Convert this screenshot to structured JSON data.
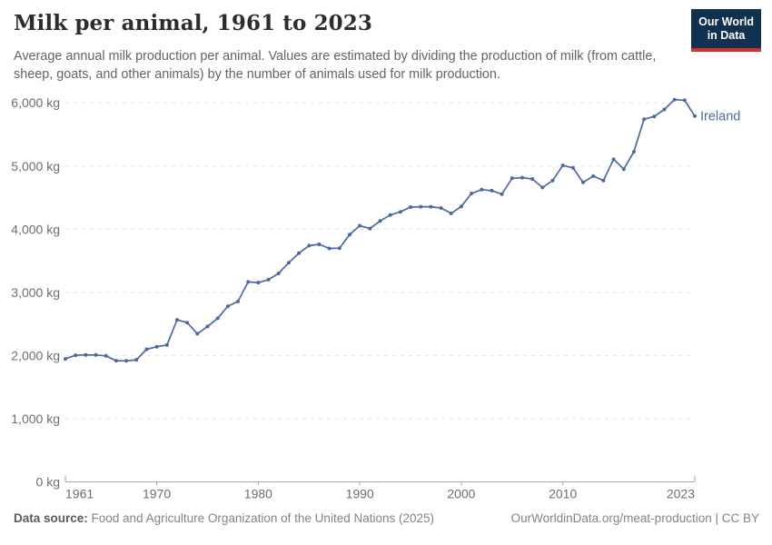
{
  "header": {
    "title": "Milk per animal, 1961 to 2023",
    "subtitle": "Average annual milk production per animal. Values are estimated by dividing the production of milk (from cattle, sheep, goats, and other animals) by the number of animals used for milk production.",
    "logo": {
      "line1": "Our World",
      "line2": "in Data"
    }
  },
  "footer": {
    "source_label": "Data source:",
    "source_text": " Food and Agriculture Organization of the United Nations (2025)",
    "credit_text": "OurWorldinData.org/meat-production | CC BY"
  },
  "chart_data": {
    "type": "line",
    "title": "Milk per animal, 1961 to 2023",
    "entity_label": "Ireland",
    "unit": "kg",
    "x": [
      1961,
      1962,
      1963,
      1964,
      1965,
      1966,
      1967,
      1968,
      1969,
      1970,
      1971,
      1972,
      1973,
      1974,
      1975,
      1976,
      1977,
      1978,
      1979,
      1980,
      1981,
      1982,
      1983,
      1984,
      1985,
      1986,
      1987,
      1988,
      1989,
      1990,
      1991,
      1992,
      1993,
      1994,
      1995,
      1996,
      1997,
      1998,
      1999,
      2000,
      2001,
      2002,
      2003,
      2004,
      2005,
      2006,
      2007,
      2008,
      2009,
      2010,
      2011,
      2012,
      2013,
      2014,
      2015,
      2016,
      2017,
      2018,
      2019,
      2020,
      2021,
      2022,
      2023
    ],
    "series": [
      {
        "name": "Ireland",
        "values": [
          1947,
          2005,
          2010,
          2008,
          1994,
          1918,
          1915,
          1932,
          2099,
          2140,
          2165,
          2565,
          2520,
          2345,
          2460,
          2590,
          2780,
          2855,
          3165,
          3155,
          3200,
          3300,
          3470,
          3620,
          3740,
          3760,
          3695,
          3700,
          3915,
          4055,
          4010,
          4130,
          4225,
          4275,
          4350,
          4355,
          4355,
          4335,
          4250,
          4360,
          4565,
          4625,
          4610,
          4555,
          4805,
          4815,
          4795,
          4660,
          4770,
          5010,
          4970,
          4740,
          4840,
          4770,
          5105,
          4950,
          5225,
          5740,
          5785,
          5895,
          6050,
          6040,
          5790
        ]
      }
    ],
    "xticks": [
      1961,
      1970,
      1980,
      1990,
      2000,
      2010,
      2023
    ],
    "yticks": [
      0,
      1000,
      2000,
      3000,
      4000,
      5000,
      6000
    ],
    "ytick_suffix": " kg",
    "xlim": [
      1961,
      2023
    ],
    "ylim": [
      0,
      6000
    ],
    "grid": "horizontal-dashed",
    "legend_position": "end-of-line",
    "colors": {
      "line": "#4C6A9C",
      "grid": "#e3e3e3",
      "axis": "#a8a8a8",
      "tick_label": "#6e6e6e"
    }
  }
}
